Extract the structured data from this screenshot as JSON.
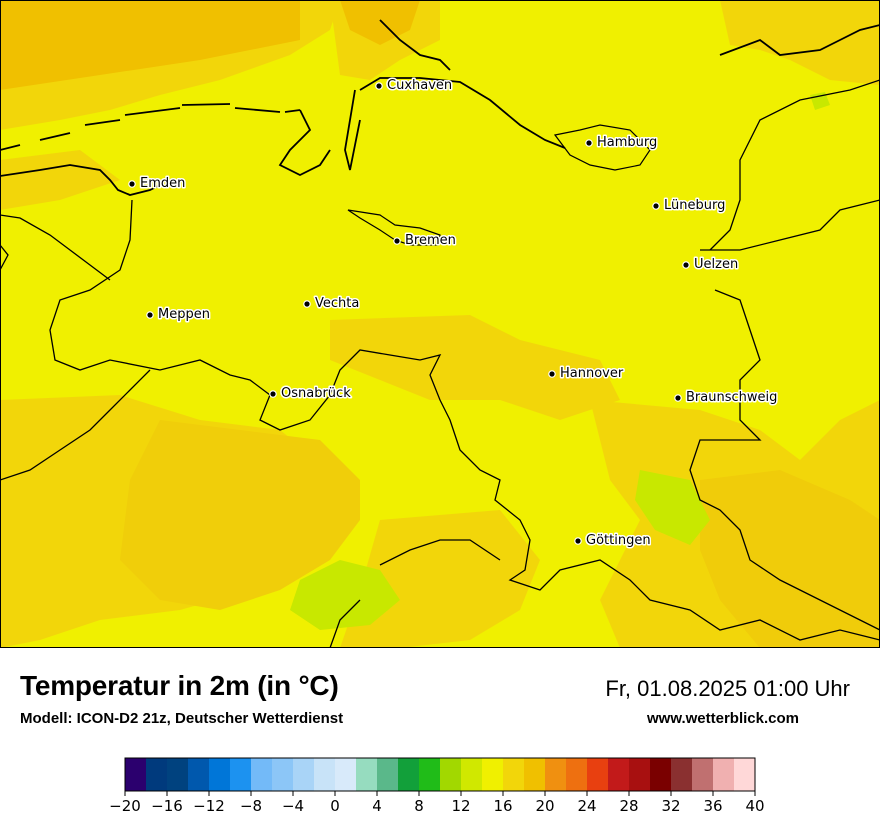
{
  "map": {
    "cities": [
      {
        "name": "Cuxhaven"
      },
      {
        "name": "Hamburg"
      },
      {
        "name": "Emden"
      },
      {
        "name": "Lüneburg"
      },
      {
        "name": "Bremen"
      },
      {
        "name": "Uelzen"
      },
      {
        "name": "Vechta"
      },
      {
        "name": "Meppen"
      },
      {
        "name": "Hannover"
      },
      {
        "name": "Osnabrück"
      },
      {
        "name": "Braunschweig"
      },
      {
        "name": "Göttingen"
      }
    ],
    "colors": {
      "base": "#f0f000",
      "warm": "#f2d60a",
      "warmer": "#f0c000",
      "cool": "#c8e800",
      "coast": "#000000",
      "border": "#000000"
    }
  },
  "footer": {
    "title": "Temperatur in 2m (in °C)",
    "subtitle": "Modell: ICON-D2 21z, Deutscher Wetterdienst",
    "datetime": "Fr, 01.08.2025 01:00 Uhr",
    "website": "www.wetterblick.com"
  },
  "scale": {
    "min": -20,
    "max": 40,
    "step_value": 2,
    "tick_labels": [
      "−20",
      "−16",
      "−12",
      "−8",
      "−4",
      "0",
      "4",
      "8",
      "12",
      "16",
      "20",
      "24",
      "28",
      "32",
      "36",
      "40"
    ],
    "tick_values": [
      -20,
      -16,
      -12,
      -8,
      -4,
      0,
      4,
      8,
      12,
      16,
      20,
      24,
      28,
      32,
      36,
      40
    ],
    "colors": [
      "#2b006e",
      "#003a7d",
      "#00427f",
      "#0058ad",
      "#0076d8",
      "#1c92f0",
      "#73baf8",
      "#8cc6f7",
      "#a9d4f7",
      "#c8e3f8",
      "#d8eafa",
      "#96dcbf",
      "#5ab88a",
      "#12a03a",
      "#20bc18",
      "#a2d800",
      "#d0e800",
      "#f0f000",
      "#f2d60a",
      "#f0c000",
      "#f09010",
      "#ee7010",
      "#e84010",
      "#c21a1a",
      "#a81010",
      "#7a0000",
      "#8a3030",
      "#c07070",
      "#f0b0b0",
      "#ffd8d8"
    ]
  }
}
